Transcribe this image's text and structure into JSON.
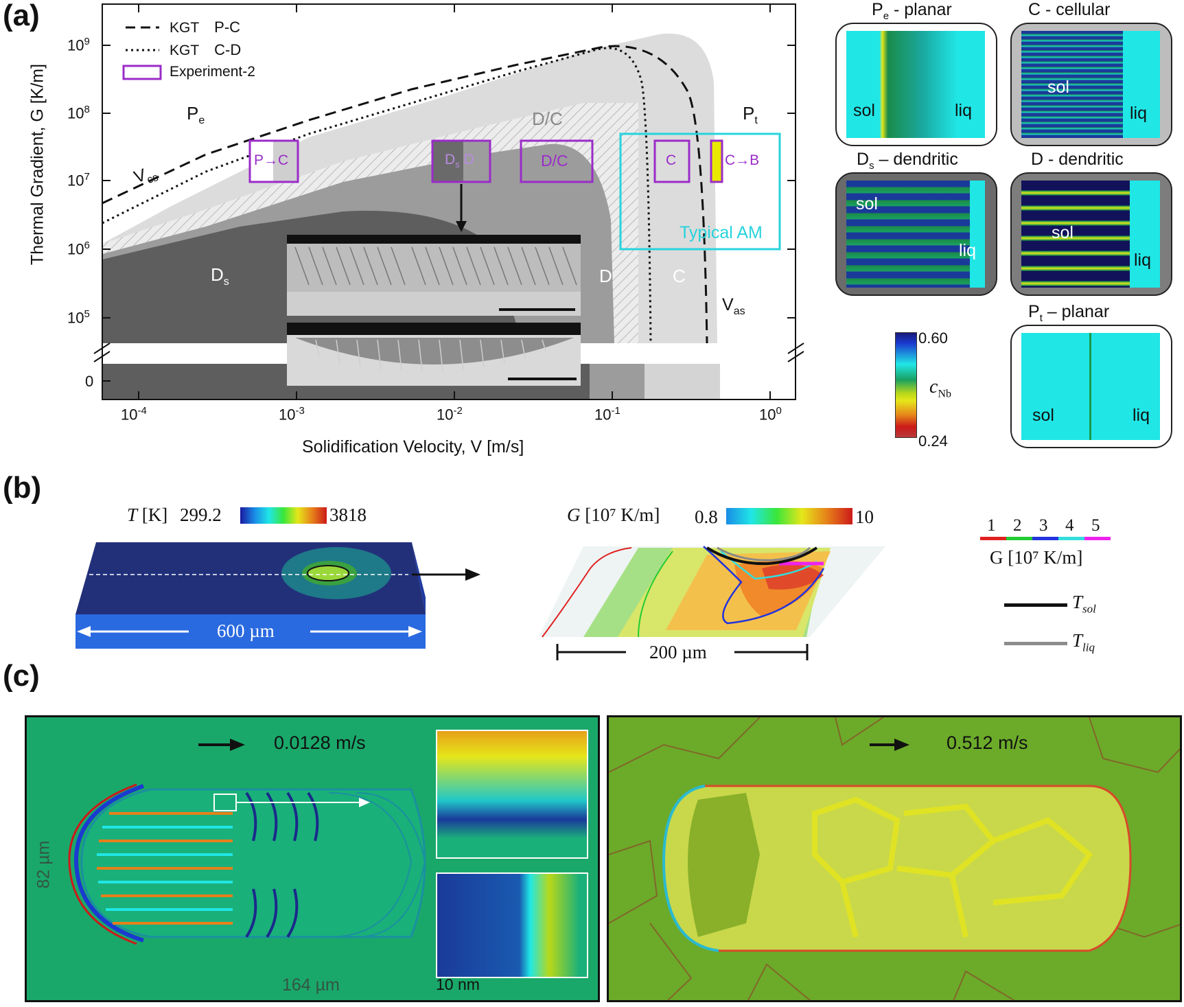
{
  "panels": {
    "a": "(a)",
    "b": "(b)",
    "c": "(c)"
  },
  "chart_a": {
    "ylabel": "Thermal Gradient, G [K/m]",
    "xlabel": "Solidification Velocity, V [m/s]",
    "y_ticks": [
      "10",
      "10",
      "10",
      "10",
      "10",
      "0"
    ],
    "y_tick_exps": [
      "9",
      "8",
      "7",
      "6",
      "5",
      ""
    ],
    "x_ticks": [
      "10",
      "10",
      "10",
      "10",
      "10"
    ],
    "x_tick_exps": [
      "-4",
      "-3",
      "-2",
      "-1",
      "0"
    ],
    "legend": {
      "kgt1": "KGT",
      "kgt1_tag": "P-C",
      "kgt2": "KGT",
      "kgt2_tag": "C-D",
      "exp": "Experiment-2"
    },
    "regions": {
      "pe": "P",
      "pe_sub": "e",
      "dc": "D/C",
      "pt": "P",
      "pt_sub": "t",
      "ds": "D",
      "ds_sub": "s",
      "d": "D",
      "c": "C",
      "vcs": "V",
      "vcs_sub": "cs",
      "vas": "V",
      "vas_sub": "as"
    },
    "boxes": {
      "pc": "P→C",
      "dsd_1": "D",
      "dsd_sub": "s",
      "dsd_2": "D",
      "dc": "D/C",
      "c": "C",
      "cb": "C→B",
      "typical": "Typical AM"
    }
  },
  "thumbs": {
    "pe": {
      "title": "P",
      "sub": "e",
      "title_rest": " - planar",
      "sol": "sol",
      "liq": "liq"
    },
    "c": {
      "title": "C - cellular",
      "sol": "sol",
      "liq": "liq"
    },
    "ds": {
      "title": "D",
      "sub": "s",
      "title_rest": " – dendritic",
      "sol": "sol",
      "liq": "liq"
    },
    "d": {
      "title": "D - dendritic",
      "sol": "sol",
      "liq": "liq"
    },
    "pt": {
      "title": "P",
      "sub": "t",
      "title_rest": " – planar",
      "sol": "sol",
      "liq": "liq"
    }
  },
  "colorbar_a": {
    "max": "0.60",
    "min": "0.24",
    "label": "c",
    "label_sub": "Nb"
  },
  "panel_b": {
    "t_label": "T",
    "t_unit": "[K]",
    "t_min": "299.2",
    "t_max": "3818",
    "g_label": "G",
    "g_unit": "[10⁷ K/m]",
    "g_min": "0.8",
    "g_max": "10",
    "scale_600": "600 µm",
    "scale_200": "200 µm",
    "contour_levels": [
      "1",
      "2",
      "3",
      "4",
      "5"
    ],
    "contour_colors": [
      "#e02020",
      "#22cc33",
      "#2233dd",
      "#33dddd",
      "#ee22ee"
    ],
    "legend_g": "G [10⁷ K/m]",
    "tsol": "T",
    "tsol_sub": "sol",
    "tliq": "T",
    "tliq_sub": "liq"
  },
  "panel_c": {
    "left_speed": "0.0128 m/s",
    "width_label": "164 µm",
    "height_label": "82 µm",
    "inset_scale": "10 nm",
    "right_speed": "0.512 m/s"
  }
}
